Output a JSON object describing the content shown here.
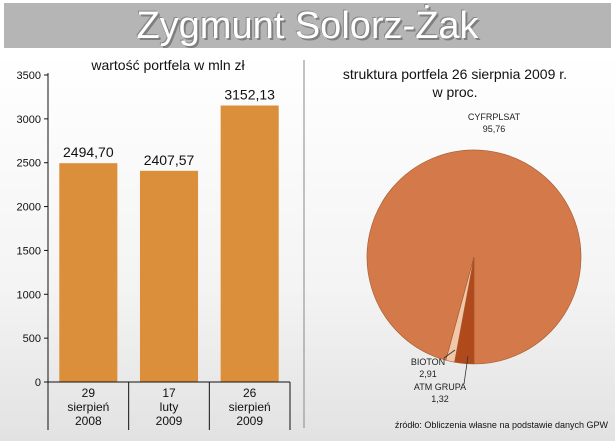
{
  "title": "Zygmunt Solorz-Żak",
  "colors": {
    "bar": "#db8f3a",
    "pie_main": "#d4794a",
    "pie_bioton": "#b04a1c",
    "pie_atm": "#f2c6a8",
    "banner": "#b5b5b5"
  },
  "chart_data": [
    {
      "type": "bar",
      "title": "wartość portfela w mln zł",
      "categories": [
        [
          "29",
          "sierpień",
          "2008"
        ],
        [
          "17",
          "luty",
          "2009"
        ],
        [
          "26",
          "sierpień",
          "2009"
        ]
      ],
      "values": [
        2494.7,
        2407.57,
        3152.13
      ],
      "value_labels": [
        "2494,70",
        "2407,57",
        "3152,13"
      ],
      "yticks": [
        0,
        500,
        1000,
        1500,
        2000,
        2500,
        3000,
        3500
      ],
      "ylim": [
        0,
        3500
      ],
      "grid": false
    },
    {
      "type": "pie",
      "title": [
        "struktura portfela 26 sierpnia 2009 r.",
        "w proc."
      ],
      "slices": [
        {
          "label": "CYFRPLSAT",
          "value": 95.76,
          "value_label": "95,76"
        },
        {
          "label": "BIOTON",
          "value": 2.91,
          "value_label": "2,91"
        },
        {
          "label": "ATM GRUPA",
          "value": 1.32,
          "value_label": "1,32"
        }
      ]
    }
  ],
  "source": "źródło: Obliczenia własne na podstawie danych GPW"
}
